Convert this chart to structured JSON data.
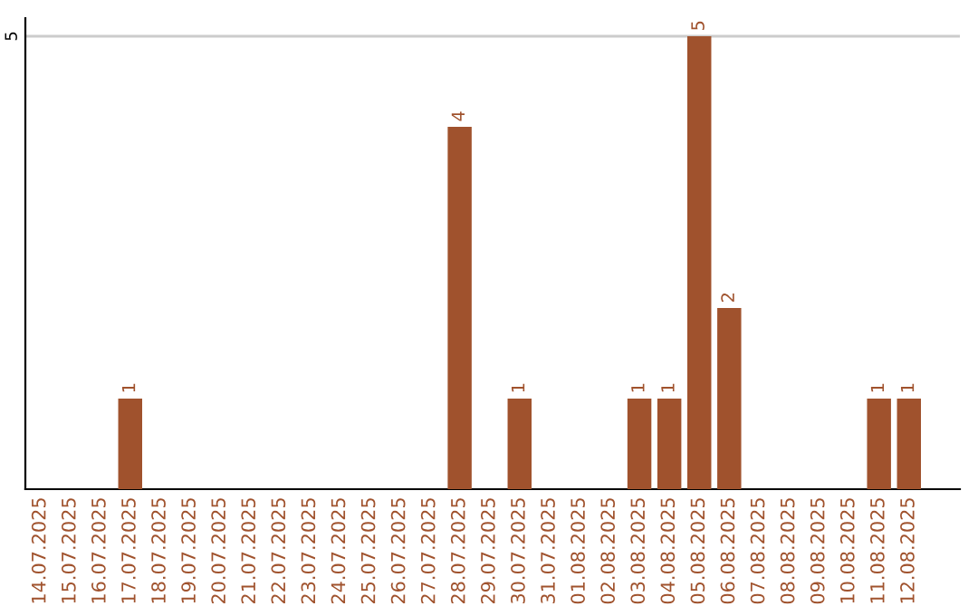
{
  "chart_data": {
    "type": "bar",
    "categories": [
      "14.07.2025",
      "15.07.2025",
      "16.07.2025",
      "17.07.2025",
      "18.07.2025",
      "19.07.2025",
      "20.07.2025",
      "21.07.2025",
      "22.07.2025",
      "23.07.2025",
      "24.07.2025",
      "25.07.2025",
      "26.07.2025",
      "27.07.2025",
      "28.07.2025",
      "29.07.2025",
      "30.07.2025",
      "31.07.2025",
      "01.08.2025",
      "02.08.2025",
      "03.08.2025",
      "04.08.2025",
      "05.08.2025",
      "06.08.2025",
      "07.08.2025",
      "08.08.2025",
      "09.08.2025",
      "10.08.2025",
      "11.08.2025",
      "12.08.2025"
    ],
    "values": [
      0,
      0,
      0,
      1,
      0,
      0,
      0,
      0,
      0,
      0,
      0,
      0,
      0,
      0,
      4,
      0,
      1,
      0,
      0,
      0,
      1,
      1,
      5,
      2,
      0,
      0,
      0,
      0,
      1,
      1
    ],
    "value_labels": [
      null,
      null,
      null,
      "1",
      null,
      null,
      null,
      null,
      null,
      null,
      null,
      null,
      null,
      null,
      "4",
      null,
      "1",
      null,
      null,
      null,
      "1",
      "1",
      "5",
      "2",
      null,
      null,
      null,
      null,
      "1",
      "1"
    ],
    "color": "#a0522d",
    "ylim": [
      0,
      5.2
    ],
    "yticks": [
      5
    ],
    "grid": "y",
    "legend": false
  }
}
